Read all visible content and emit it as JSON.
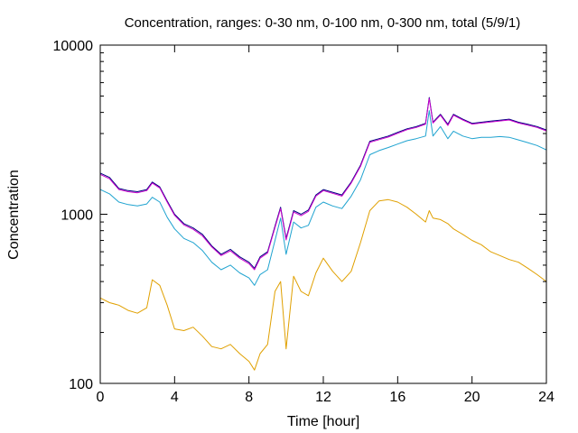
{
  "chart_data": {
    "type": "line",
    "title": "Concentration, ranges: 0-30 nm, 0-100 nm, 0-300 nm, total (5/9/1)",
    "xlabel": "Time [hour]",
    "ylabel": "Concentration",
    "xlim": [
      0,
      24
    ],
    "ylim": [
      100,
      10000
    ],
    "yscale": "log",
    "grid": false,
    "legend": "none",
    "xticks": [
      0,
      4,
      8,
      12,
      16,
      20,
      24
    ],
    "xtick_labels": [
      "0",
      "4",
      "8",
      "12",
      "16",
      "20",
      "24"
    ],
    "yticks": [
      100,
      1000,
      10000
    ],
    "ytick_labels": [
      "100",
      "1000",
      "10000"
    ],
    "x": [
      0,
      0.5,
      1,
      1.5,
      2,
      2.5,
      2.8,
      3.2,
      3.6,
      4,
      4.5,
      5,
      5.5,
      6,
      6.5,
      7,
      7.5,
      8,
      8.3,
      8.6,
      9,
      9.4,
      9.7,
      10,
      10.4,
      10.8,
      11.2,
      11.6,
      12,
      12.5,
      13,
      13.5,
      14,
      14.5,
      15,
      15.5,
      16,
      16.5,
      17,
      17.5,
      17.7,
      17.9,
      18.3,
      18.7,
      19,
      19.5,
      20,
      20.5,
      21,
      21.5,
      22,
      22.5,
      23,
      23.5,
      24
    ],
    "series": [
      {
        "color": "#000080",
        "values": [
          1750,
          1650,
          1420,
          1380,
          1360,
          1400,
          1550,
          1450,
          1200,
          1000,
          880,
          830,
          760,
          650,
          580,
          620,
          560,
          520,
          480,
          560,
          600,
          850,
          1100,
          720,
          1050,
          1000,
          1060,
          1300,
          1400,
          1350,
          1300,
          1550,
          1950,
          2700,
          2800,
          2900,
          3050,
          3200,
          3300,
          3450,
          4900,
          3500,
          3900,
          3400,
          3900,
          3650,
          3450,
          3500,
          3550,
          3600,
          3650,
          3500,
          3400,
          3300,
          3150
        ]
      },
      {
        "color": "#cc00cc",
        "values": [
          1720,
          1620,
          1400,
          1360,
          1340,
          1380,
          1530,
          1430,
          1180,
          985,
          865,
          815,
          745,
          640,
          570,
          608,
          550,
          510,
          470,
          550,
          590,
          835,
          1080,
          705,
          1030,
          980,
          1040,
          1280,
          1380,
          1330,
          1280,
          1530,
          1920,
          2660,
          2760,
          2860,
          3010,
          3160,
          3260,
          3410,
          4840,
          3460,
          3850,
          3350,
          3850,
          3610,
          3410,
          3460,
          3510,
          3560,
          3610,
          3460,
          3360,
          3260,
          3110
        ]
      },
      {
        "color": "#1fa3d0",
        "values": [
          1400,
          1320,
          1180,
          1140,
          1120,
          1150,
          1260,
          1180,
          960,
          820,
          720,
          680,
          610,
          520,
          470,
          500,
          450,
          420,
          380,
          440,
          470,
          700,
          950,
          580,
          900,
          830,
          860,
          1100,
          1180,
          1120,
          1080,
          1280,
          1600,
          2250,
          2380,
          2480,
          2600,
          2720,
          2800,
          2900,
          4100,
          2900,
          3300,
          2800,
          3100,
          2900,
          2800,
          2850,
          2850,
          2880,
          2850,
          2750,
          2650,
          2550,
          2400
        ]
      },
      {
        "color": "#e0a000",
        "values": [
          320,
          300,
          290,
          270,
          260,
          280,
          410,
          380,
          290,
          210,
          205,
          215,
          190,
          165,
          160,
          170,
          150,
          135,
          120,
          150,
          170,
          350,
          400,
          160,
          430,
          350,
          330,
          450,
          550,
          460,
          400,
          460,
          680,
          1050,
          1200,
          1220,
          1180,
          1100,
          1000,
          900,
          1050,
          950,
          930,
          880,
          820,
          760,
          700,
          660,
          600,
          570,
          540,
          520,
          480,
          440,
          400
        ]
      }
    ]
  }
}
